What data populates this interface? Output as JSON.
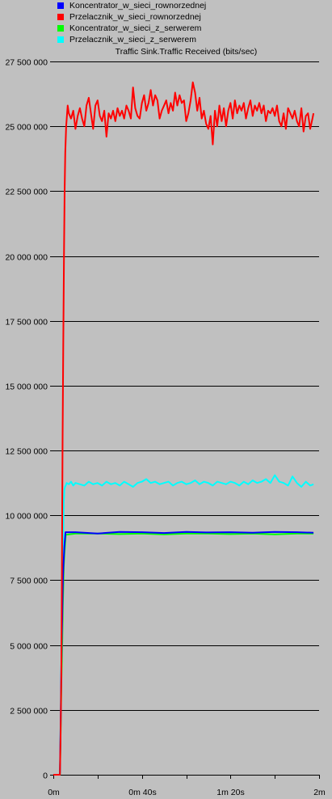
{
  "legend": [
    {
      "label": "Koncentrator_w_sieci_rownorzednej",
      "color": "#0000ff"
    },
    {
      "label": "Przelacznik_w_sieci_rownorzednej",
      "color": "#ff0000"
    },
    {
      "label": "Koncentrator_w_sieci_z_serwerem",
      "color": "#00ff00"
    },
    {
      "label": "Przelacznik_w_sieci_z_serwerem",
      "color": "#00ffff"
    }
  ],
  "chart_data": {
    "type": "line",
    "title": "Traffic Sink.Traffic Received (bits/sec)",
    "xlabel": "",
    "ylabel": "",
    "xlim": [
      0,
      120
    ],
    "ylim": [
      0,
      27500000
    ],
    "grid": true,
    "y_ticks": [
      {
        "value": 0,
        "label": "0"
      },
      {
        "value": 2500000,
        "label": "2 500 000"
      },
      {
        "value": 5000000,
        "label": "5 000 000"
      },
      {
        "value": 7500000,
        "label": "7 500 000"
      },
      {
        "value": 10000000,
        "label": "10 000 000"
      },
      {
        "value": 12500000,
        "label": "12 500 000"
      },
      {
        "value": 15000000,
        "label": "15 000 000"
      },
      {
        "value": 17500000,
        "label": "17 500 000"
      },
      {
        "value": 20000000,
        "label": "20 000 000"
      },
      {
        "value": 22500000,
        "label": "22 500 000"
      },
      {
        "value": 25000000,
        "label": "25 000 000"
      },
      {
        "value": 27500000,
        "label": "27 500 000"
      }
    ],
    "x_ticks": [
      {
        "value": 0,
        "label": "0m"
      },
      {
        "value": 20,
        "label": ""
      },
      {
        "value": 40,
        "label": "0m 40s"
      },
      {
        "value": 60,
        "label": ""
      },
      {
        "value": 80,
        "label": "1m 20s"
      },
      {
        "value": 100,
        "label": ""
      },
      {
        "value": 120,
        "label": "2m"
      }
    ],
    "series": [
      {
        "name": "Koncentrator_w_sieci_z_serwerem",
        "color": "#00ff00",
        "x": [
          0,
          3,
          3.3,
          3.6,
          4,
          4.3,
          4.7,
          5,
          5.6,
          10,
          20,
          30,
          40,
          50,
          60,
          70,
          80,
          90,
          100,
          110,
          117.5
        ],
        "y": [
          0,
          0,
          1500000,
          3500000,
          5000000,
          6500000,
          8000000,
          8500000,
          9250000,
          9300000,
          9300000,
          9280000,
          9300000,
          9270000,
          9300000,
          9300000,
          9280000,
          9300000,
          9270000,
          9300000,
          9300000
        ]
      },
      {
        "name": "Przelacznik_w_sieci_z_serwerem",
        "color": "#00ffff",
        "x": [
          0,
          3,
          3.3,
          3.6,
          4,
          4.3,
          4.7,
          5,
          5.3,
          5.6,
          6,
          7,
          8,
          9,
          10,
          12,
          14,
          16,
          18,
          20,
          22,
          24,
          26,
          28,
          30,
          32,
          34,
          36,
          38,
          40,
          42,
          44,
          46,
          48,
          50,
          52,
          54,
          56,
          58,
          60,
          62,
          64,
          66,
          68,
          70,
          72,
          74,
          76,
          78,
          80,
          82,
          84,
          86,
          88,
          90,
          92,
          94,
          96,
          98,
          100,
          102,
          104,
          106,
          108,
          110,
          112,
          114,
          116,
          117.5
        ],
        "y": [
          0,
          0,
          2000000,
          4200000,
          6000000,
          8000000,
          10500000,
          11000000,
          11100000,
          11150000,
          11250000,
          11200000,
          11300000,
          11150000,
          11250000,
          11200000,
          11150000,
          11300000,
          11200000,
          11250000,
          11150000,
          11300000,
          11200000,
          11250000,
          11150000,
          11300000,
          11200000,
          11100000,
          11250000,
          11300000,
          11400000,
          11250000,
          11300000,
          11200000,
          11250000,
          11300000,
          11150000,
          11250000,
          11300000,
          11200000,
          11250000,
          11350000,
          11200000,
          11300000,
          11250000,
          11150000,
          11300000,
          11250000,
          11200000,
          11300000,
          11250000,
          11150000,
          11300000,
          11200000,
          11350000,
          11250000,
          11300000,
          11400000,
          11250000,
          11550000,
          11300000,
          11250000,
          11150000,
          11500000,
          11250000,
          11100000,
          11300000,
          11150000,
          11200000
        ]
      },
      {
        "name": "Koncentrator_w_sieci_rownorzednej",
        "color": "#0000ff",
        "x": [
          0,
          2.9,
          3,
          3.3,
          3.6,
          3.8,
          4,
          4.2,
          4.4,
          4.6,
          5,
          5.5,
          10,
          20,
          30,
          40,
          50,
          60,
          70,
          80,
          90,
          100,
          110,
          117.5
        ],
        "y": [
          0,
          0,
          100000,
          1800000,
          4000000,
          5200000,
          6000000,
          7000000,
          7700000,
          8100000,
          8800000,
          9350000,
          9350000,
          9300000,
          9360000,
          9350000,
          9320000,
          9360000,
          9340000,
          9350000,
          9330000,
          9360000,
          9350000,
          9330000
        ]
      },
      {
        "name": "Przelacznik_w_sieci_rownorzednej",
        "color": "#ff0000",
        "x": [
          0,
          3,
          3.3,
          3.6,
          3.9,
          4.2,
          4.5,
          4.8,
          5.1,
          5.4,
          5.8,
          6.5,
          7,
          8,
          9,
          10,
          11,
          12,
          13,
          14,
          15,
          16,
          17,
          18,
          19,
          20,
          21,
          22,
          23,
          24,
          25,
          26,
          27,
          28,
          29,
          30,
          31,
          32,
          33,
          34,
          35,
          36,
          37,
          38,
          39,
          40,
          41,
          42,
          43,
          44,
          45,
          46,
          47,
          48,
          49,
          50,
          51,
          52,
          53,
          54,
          55,
          56,
          57,
          58,
          59,
          60,
          61,
          62,
          63,
          64,
          65,
          66,
          67,
          68,
          69,
          70,
          71,
          72,
          73,
          74,
          75,
          76,
          77,
          78,
          79,
          80,
          81,
          82,
          83,
          84,
          85,
          86,
          87,
          88,
          89,
          90,
          91,
          92,
          93,
          94,
          95,
          96,
          97,
          98,
          99,
          100,
          101,
          102,
          103,
          104,
          105,
          106,
          107,
          108,
          109,
          110,
          111,
          112,
          113,
          114,
          115,
          116,
          117,
          117.5
        ],
        "y": [
          0,
          0,
          1500000,
          3800000,
          8000000,
          13000000,
          16500000,
          20000000,
          22500000,
          24000000,
          25000000,
          25800000,
          25500000,
          25300000,
          25600000,
          24900000,
          25400000,
          25700000,
          25300000,
          25000000,
          25800000,
          26100000,
          25500000,
          24900000,
          25800000,
          26000000,
          25400000,
          25200000,
          25600000,
          24600000,
          25500000,
          25300000,
          25600000,
          25200000,
          25700000,
          25400000,
          25600000,
          25300000,
          25800000,
          25600000,
          25300000,
          26500000,
          25700000,
          25400000,
          25300000,
          25900000,
          26200000,
          25600000,
          25900000,
          26400000,
          25800000,
          26200000,
          26000000,
          25300000,
          25600000,
          25800000,
          26000000,
          25500000,
          25900000,
          25600000,
          26300000,
          25800000,
          26200000,
          25900000,
          26000000,
          25200000,
          25500000,
          26000000,
          26700000,
          26300000,
          25600000,
          26100000,
          25300000,
          25600000,
          25100000,
          24900000,
          25400000,
          24300000,
          25600000,
          25000000,
          25800000,
          25200000,
          25700000,
          25000000,
          25600000,
          25900000,
          25300000,
          26000000,
          25500000,
          25800000,
          25600000,
          25900000,
          25300000,
          25700000,
          26000000,
          25400000,
          25800000,
          25600000,
          25900000,
          25500000,
          25800000,
          25200000,
          25600000,
          25500000,
          25700000,
          25400000,
          25800000,
          25200000,
          25000000,
          25500000,
          24900000,
          25700000,
          25500000,
          25300000,
          25600000,
          25200000,
          25000000,
          25700000,
          24800000,
          25400000,
          25500000,
          24900000,
          25300000,
          25500000
        ]
      }
    ]
  }
}
